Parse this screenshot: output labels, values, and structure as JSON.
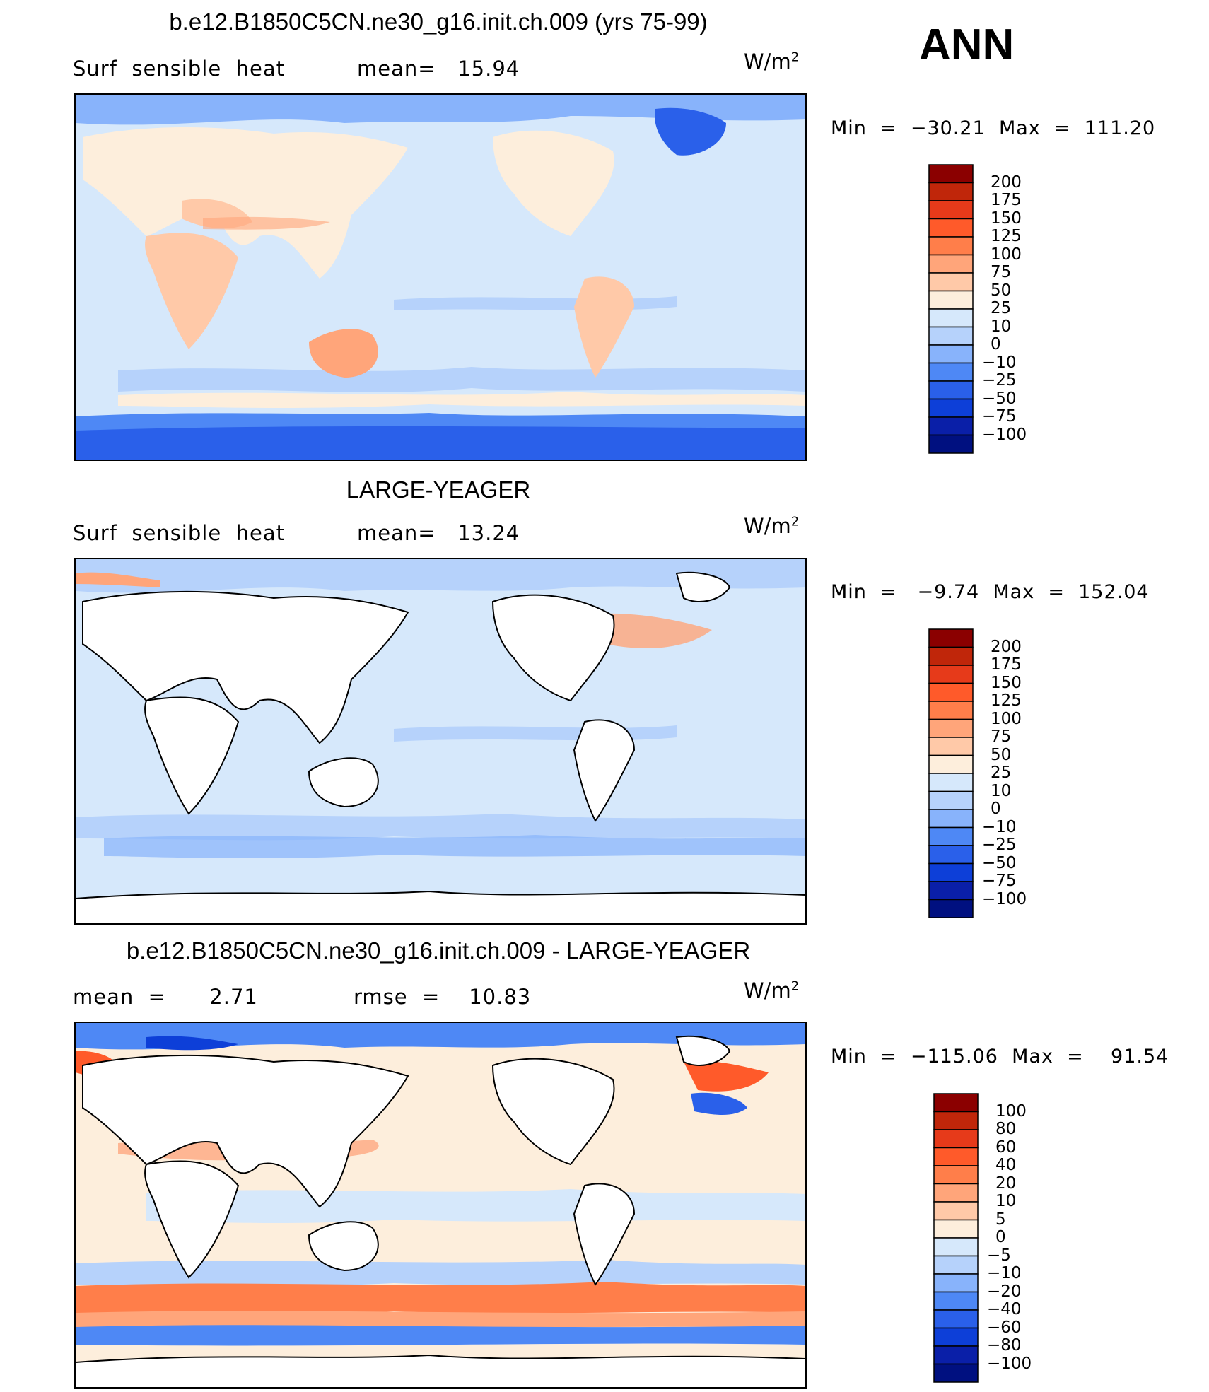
{
  "header": {
    "season": "ANN"
  },
  "panels": [
    {
      "title": "b.e12.B1850C5CN.ne30_g16.init.ch.009 (yrs 75-99)",
      "left_text": "Surf  sensible  heat",
      "mid_text": "mean=   15.94",
      "units": "W/m",
      "units_sup": "2",
      "minmax": "Min  =  −30.21  Max  =  111.20",
      "colorbar_labels": [
        "200",
        "175",
        "150",
        "125",
        "100",
        "75",
        "50",
        "25",
        "10",
        "0",
        "−10",
        "−25",
        "−50",
        "−75",
        "−100"
      ],
      "colorbar_colors": [
        "#8b0000",
        "#c0260a",
        "#e63a1a",
        "#ff5a2a",
        "#ff7e4a",
        "#ffa57a",
        "#ffc9a8",
        "#fdeedc",
        "#d6e8fb",
        "#b6d2fb",
        "#88b3fb",
        "#4e88f5",
        "#2a60ea",
        "#0d3fd8",
        "#0a1fa8",
        "#001080"
      ]
    },
    {
      "title": "LARGE-YEAGER",
      "left_text": "Surf  sensible  heat",
      "mid_text": "mean=   13.24",
      "units": "W/m",
      "units_sup": "2",
      "minmax": "Min  =   −9.74  Max  =  152.04",
      "colorbar_labels": [
        "200",
        "175",
        "150",
        "125",
        "100",
        "75",
        "50",
        "25",
        "10",
        "0",
        "−10",
        "−25",
        "−50",
        "−75",
        "−100"
      ],
      "colorbar_colors": [
        "#8b0000",
        "#c0260a",
        "#e63a1a",
        "#ff5a2a",
        "#ff7e4a",
        "#ffa57a",
        "#ffc9a8",
        "#fdeedc",
        "#d6e8fb",
        "#b6d2fb",
        "#88b3fb",
        "#4e88f5",
        "#2a60ea",
        "#0d3fd8",
        "#0a1fa8",
        "#001080"
      ]
    },
    {
      "title": "b.e12.B1850C5CN.ne30_g16.init.ch.009 - LARGE-YEAGER",
      "left_text": "mean  =      2.71",
      "mid_text": "rmse  =    10.83",
      "units": "W/m",
      "units_sup": "2",
      "minmax": "Min  =  −115.06  Max  =    91.54",
      "colorbar_labels": [
        "100",
        "80",
        "60",
        "40",
        "20",
        "10",
        "5",
        "0",
        "−5",
        "−10",
        "−20",
        "−40",
        "−60",
        "−80",
        "−100"
      ],
      "colorbar_colors": [
        "#8b0000",
        "#c0260a",
        "#e63a1a",
        "#ff5a2a",
        "#ff7e4a",
        "#ffa57a",
        "#ffc9a8",
        "#fdeedc",
        "#d6e8fb",
        "#b6d2fb",
        "#88b3fb",
        "#4e88f5",
        "#2a60ea",
        "#0d3fd8",
        "#0a1fa8",
        "#001080"
      ]
    }
  ],
  "chart_data": [
    {
      "type": "heatmap",
      "title": "b.e12.B1850C5CN.ne30_g16.init.ch.009 (yrs 75-99)",
      "variable": "Surf sensible heat",
      "units": "W/m2",
      "mean": 15.94,
      "min": -30.21,
      "max": 111.2,
      "contour_levels": [
        -100,
        -75,
        -50,
        -25,
        -10,
        0,
        10,
        25,
        50,
        75,
        100,
        125,
        150,
        175,
        200
      ]
    },
    {
      "type": "heatmap",
      "title": "LARGE-YEAGER",
      "variable": "Surf sensible heat",
      "units": "W/m2",
      "mean": 13.24,
      "min": -9.74,
      "max": 152.04,
      "contour_levels": [
        -100,
        -75,
        -50,
        -25,
        -10,
        0,
        10,
        25,
        50,
        75,
        100,
        125,
        150,
        175,
        200
      ]
    },
    {
      "type": "heatmap",
      "title": "b.e12.B1850C5CN.ne30_g16.init.ch.009 - LARGE-YEAGER",
      "units": "W/m2",
      "mean": 2.71,
      "rmse": 10.83,
      "min": -115.06,
      "max": 91.54,
      "contour_levels": [
        -100,
        -80,
        -60,
        -40,
        -20,
        -10,
        -5,
        0,
        5,
        10,
        20,
        40,
        60,
        80,
        100
      ]
    }
  ]
}
